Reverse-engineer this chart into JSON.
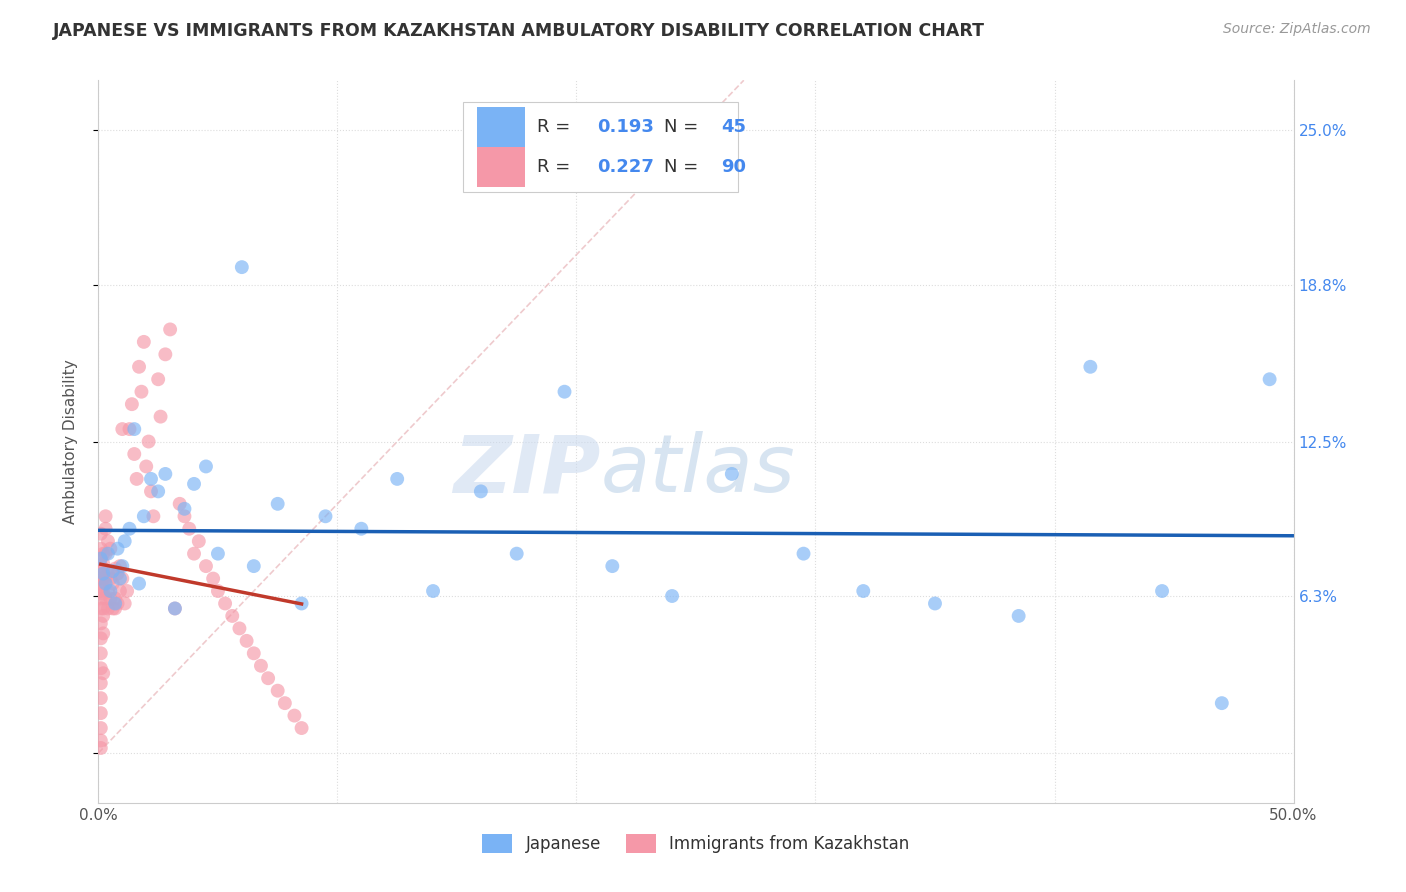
{
  "title": "JAPANESE VS IMMIGRANTS FROM KAZAKHSTAN AMBULATORY DISABILITY CORRELATION CHART",
  "source": "Source: ZipAtlas.com",
  "ylabel": "Ambulatory Disability",
  "watermark_zip": "ZIP",
  "watermark_atlas": "atlas",
  "xlim": [
    0.0,
    0.5
  ],
  "ylim": [
    -0.02,
    0.27
  ],
  "xtick_positions": [
    0.0,
    0.1,
    0.2,
    0.3,
    0.4,
    0.5
  ],
  "xticklabels": [
    "0.0%",
    "",
    "",
    "",
    "",
    "50.0%"
  ],
  "ytick_positions": [
    0.0,
    0.063,
    0.125,
    0.188,
    0.25
  ],
  "ytick_labels": [
    "",
    "6.3%",
    "12.5%",
    "18.8%",
    "25.0%"
  ],
  "R_japanese": 0.193,
  "N_japanese": 45,
  "R_kazakhstan": 0.227,
  "N_kazakhstan": 90,
  "color_japanese": "#7ab3f5",
  "color_kazakhstan": "#f598a8",
  "color_japanese_line": "#1a5fb4",
  "color_kazakhstan_line": "#c0392b",
  "color_diag_line": "#e8b4b8",
  "japanese_x": [
    0.001,
    0.002,
    0.003,
    0.004,
    0.005,
    0.006,
    0.007,
    0.008,
    0.009,
    0.01,
    0.011,
    0.013,
    0.015,
    0.017,
    0.019,
    0.022,
    0.025,
    0.028,
    0.032,
    0.036,
    0.04,
    0.045,
    0.05,
    0.06,
    0.065,
    0.075,
    0.085,
    0.095,
    0.11,
    0.125,
    0.14,
    0.16,
    0.175,
    0.195,
    0.215,
    0.24,
    0.265,
    0.295,
    0.32,
    0.35,
    0.385,
    0.415,
    0.445,
    0.47,
    0.49
  ],
  "japanese_y": [
    0.078,
    0.072,
    0.068,
    0.08,
    0.065,
    0.073,
    0.06,
    0.082,
    0.07,
    0.075,
    0.085,
    0.09,
    0.13,
    0.068,
    0.095,
    0.11,
    0.105,
    0.112,
    0.058,
    0.098,
    0.108,
    0.115,
    0.08,
    0.195,
    0.075,
    0.1,
    0.06,
    0.095,
    0.09,
    0.11,
    0.065,
    0.105,
    0.08,
    0.145,
    0.075,
    0.063,
    0.112,
    0.08,
    0.065,
    0.06,
    0.055,
    0.155,
    0.065,
    0.02,
    0.15
  ],
  "kazakhstan_x": [
    0.001,
    0.001,
    0.001,
    0.001,
    0.001,
    0.001,
    0.001,
    0.001,
    0.001,
    0.001,
    0.001,
    0.001,
    0.001,
    0.001,
    0.001,
    0.001,
    0.001,
    0.001,
    0.001,
    0.001,
    0.002,
    0.002,
    0.002,
    0.002,
    0.002,
    0.002,
    0.002,
    0.002,
    0.002,
    0.002,
    0.003,
    0.003,
    0.003,
    0.003,
    0.003,
    0.004,
    0.004,
    0.004,
    0.004,
    0.005,
    0.005,
    0.005,
    0.006,
    0.006,
    0.007,
    0.007,
    0.007,
    0.008,
    0.008,
    0.009,
    0.009,
    0.01,
    0.01,
    0.011,
    0.012,
    0.013,
    0.014,
    0.015,
    0.016,
    0.017,
    0.018,
    0.019,
    0.02,
    0.021,
    0.022,
    0.023,
    0.025,
    0.026,
    0.028,
    0.03,
    0.032,
    0.034,
    0.036,
    0.038,
    0.04,
    0.042,
    0.045,
    0.048,
    0.05,
    0.053,
    0.056,
    0.059,
    0.062,
    0.065,
    0.068,
    0.071,
    0.075,
    0.078,
    0.082,
    0.085
  ],
  "kazakhstan_y": [
    0.075,
    0.072,
    0.068,
    0.062,
    0.058,
    0.052,
    0.046,
    0.04,
    0.034,
    0.028,
    0.022,
    0.016,
    0.01,
    0.005,
    0.002,
    0.065,
    0.07,
    0.078,
    0.082,
    0.088,
    0.058,
    0.064,
    0.07,
    0.076,
    0.08,
    0.074,
    0.066,
    0.048,
    0.032,
    0.055,
    0.062,
    0.07,
    0.08,
    0.09,
    0.095,
    0.058,
    0.065,
    0.072,
    0.085,
    0.062,
    0.07,
    0.082,
    0.058,
    0.068,
    0.062,
    0.074,
    0.058,
    0.06,
    0.072,
    0.065,
    0.075,
    0.07,
    0.13,
    0.06,
    0.065,
    0.13,
    0.14,
    0.12,
    0.11,
    0.155,
    0.145,
    0.165,
    0.115,
    0.125,
    0.105,
    0.095,
    0.15,
    0.135,
    0.16,
    0.17,
    0.058,
    0.1,
    0.095,
    0.09,
    0.08,
    0.085,
    0.075,
    0.07,
    0.065,
    0.06,
    0.055,
    0.05,
    0.045,
    0.04,
    0.035,
    0.03,
    0.025,
    0.02,
    0.015,
    0.01
  ],
  "diag_line_x": [
    0.0,
    0.27
  ],
  "diag_line_y": [
    0.0,
    0.27
  ]
}
